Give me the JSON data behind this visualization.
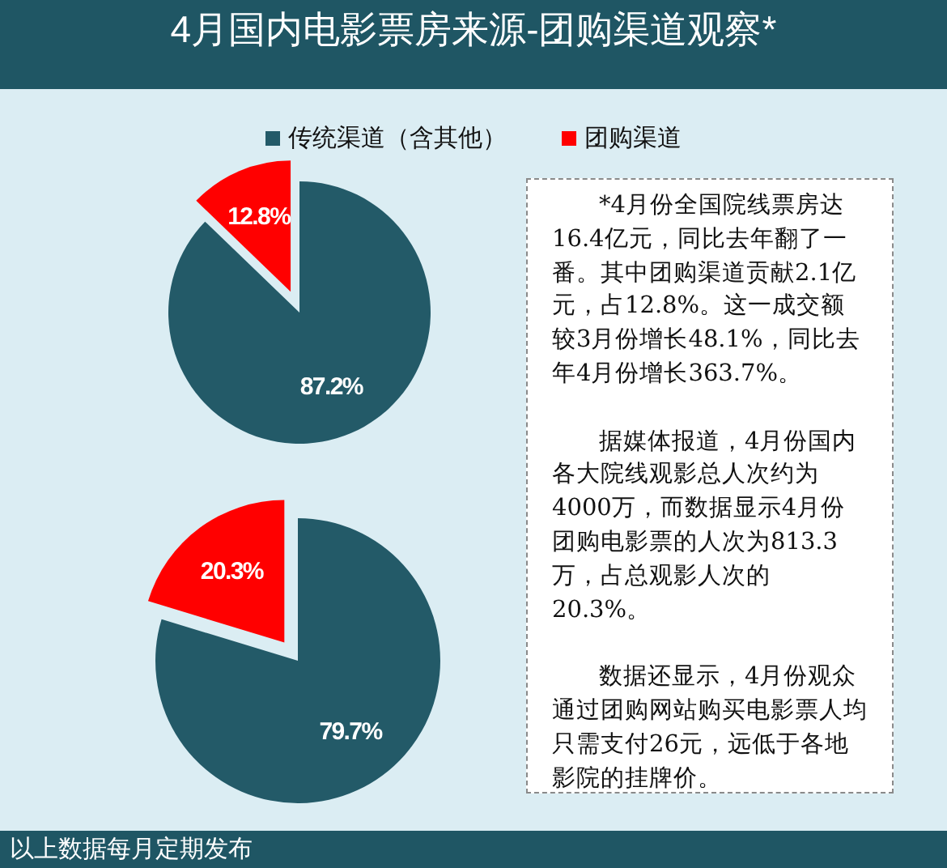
{
  "chart_data": [
    {
      "type": "pie",
      "title": "4月国内电影票房来源-团购渠道观察*",
      "categories": [
        "传统渠道（含其他）",
        "团购渠道"
      ],
      "values": [
        87.2,
        12.8
      ],
      "colors": [
        "#235a68",
        "#ff0000"
      ],
      "value_labels": [
        "87.2%",
        "12.8%"
      ],
      "legend": "top"
    },
    {
      "type": "pie",
      "categories": [
        null,
        null
      ],
      "values": [
        79.7,
        20.3
      ],
      "colors": [
        "#235a68",
        "#ff0000"
      ],
      "value_labels": [
        "79.7%",
        "20.3%"
      ],
      "annotations": [
        "以上数据每月定期发布"
      ]
    },
    {
      "type": "other",
      "annotations": [
        "*4月份全国院线票房达16.4亿元，同比去年翻了一番。其中团购渠道贡献2.1亿元，占12.8%。这一成交额较3月份增长48.1%，同比去年4月份增长363.7%。",
        "据媒体报道，4月份国内各大院线观影总人次约为4000万，而数据显示4月份团购电影票的人次为813.3万，占总观影人次的20.3%。",
        "数据还显示，4月份观众通过团购网站购买电影票人均只需支付26元，远低于各地影院的挂牌价。"
      ]
    }
  ]
}
